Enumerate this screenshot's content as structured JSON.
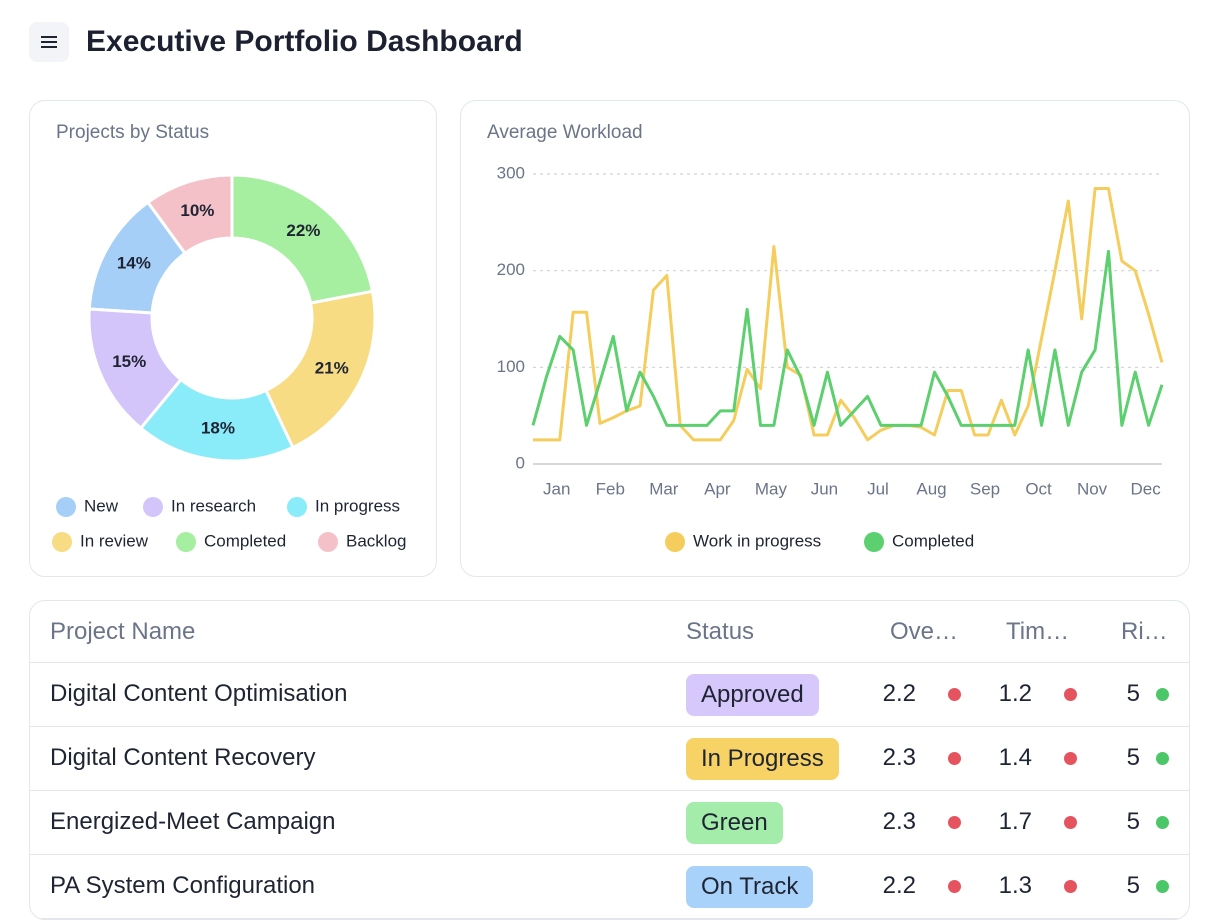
{
  "header": {
    "title": "Executive Portfolio Dashboard"
  },
  "chart_data": [
    {
      "type": "pie",
      "title": "Projects by Status",
      "categories": [
        "New",
        "In research",
        "In progress",
        "In review",
        "Completed",
        "Backlog"
      ],
      "values": [
        14,
        15,
        18,
        21,
        22,
        10
      ],
      "value_labels": [
        "14%",
        "15%",
        "18%",
        "21%",
        "22%",
        "10%"
      ],
      "colors": [
        "#a6cff8",
        "#d3c5fa",
        "#8aebf9",
        "#f7dc84",
        "#a6eea0",
        "#f5c1c8"
      ],
      "legend": "bottom"
    },
    {
      "type": "line",
      "title": "Average Workload",
      "categories": [
        null,
        null,
        "Jan",
        null,
        null,
        null,
        "Feb",
        null,
        null,
        null,
        "Mar",
        null,
        null,
        null,
        "Apr",
        null,
        null,
        null,
        "May",
        null,
        null,
        null,
        "Jun",
        null,
        null,
        null,
        "Jul",
        null,
        null,
        null,
        "Aug",
        null,
        null,
        null,
        "Sep",
        null,
        null,
        null,
        "Oct",
        null,
        null,
        null,
        "Nov",
        null,
        null,
        null,
        "Dec",
        null
      ],
      "series": [
        {
          "name": "Work in progress",
          "color": "#f5cd5c",
          "values": [
            25,
            25,
            25,
            157,
            157,
            42,
            48,
            55,
            60,
            180,
            195,
            40,
            25,
            25,
            25,
            45,
            98,
            78,
            225,
            100,
            92,
            30,
            30,
            66,
            48,
            25,
            35,
            40,
            40,
            38,
            30,
            76,
            76,
            30,
            30,
            66,
            30,
            60,
            130,
            200,
            272,
            150,
            285,
            285,
            210,
            200,
            155,
            105
          ]
        },
        {
          "name": "Completed",
          "color": "#5ccf6e",
          "values": [
            40,
            90,
            132,
            118,
            40,
            85,
            132,
            55,
            95,
            70,
            40,
            40,
            40,
            40,
            55,
            55,
            160,
            40,
            40,
            118,
            90,
            40,
            95,
            40,
            55,
            70,
            40,
            40,
            40,
            40,
            95,
            70,
            40,
            40,
            40,
            40,
            40,
            118,
            40,
            118,
            40,
            95,
            118,
            220,
            40,
            95,
            40,
            82
          ]
        }
      ],
      "ylim": [
        0,
        300
      ],
      "yticks": [
        0,
        100,
        200,
        300
      ],
      "grid": true,
      "legend": "bottom"
    }
  ],
  "table": {
    "columns": [
      "Project Name",
      "Status",
      "Ove…",
      "Tim…",
      "Ri…"
    ],
    "rows": [
      {
        "name": "Digital Content Optimisation",
        "status": "Approved",
        "status_color": "#d6c8fb",
        "overall": 2.2,
        "overall_color": "#e5535f",
        "timeline": 1.2,
        "timeline_color": "#e5535f",
        "risk": 5,
        "risk_color": "#4cc767"
      },
      {
        "name": "Digital Content Recovery",
        "status": "In Progress",
        "status_color": "#f7d264",
        "overall": 2.3,
        "overall_color": "#e5535f",
        "timeline": 1.4,
        "timeline_color": "#e5535f",
        "risk": 5,
        "risk_color": "#4cc767"
      },
      {
        "name": "Energized-Meet Campaign",
        "status": "Green",
        "status_color": "#a4eca9",
        "overall": 2.3,
        "overall_color": "#e5535f",
        "timeline": 1.7,
        "timeline_color": "#e5535f",
        "risk": 5,
        "risk_color": "#4cc767"
      },
      {
        "name": "PA System Configuration",
        "status": "On Track",
        "status_color": "#a8d2f9",
        "overall": 2.2,
        "overall_color": "#e5535f",
        "timeline": 1.3,
        "timeline_color": "#e5535f",
        "risk": 5,
        "risk_color": "#4cc767"
      }
    ]
  }
}
